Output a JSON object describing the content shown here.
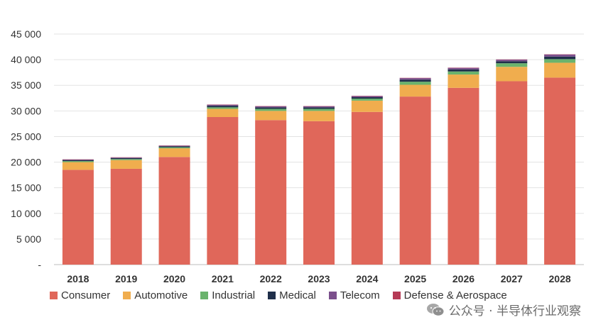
{
  "chart_data": {
    "type": "bar",
    "stacked": true,
    "categories": [
      "2018",
      "2019",
      "2020",
      "2021",
      "2022",
      "2023",
      "2024",
      "2025",
      "2026",
      "2027",
      "2028"
    ],
    "series": [
      {
        "name": "Consumer",
        "color": "#e0675a",
        "values": [
          18500,
          18700,
          21000,
          28800,
          28200,
          28000,
          29800,
          32800,
          34500,
          35800,
          36500
        ]
      },
      {
        "name": "Automotive",
        "color": "#f0ad4e",
        "values": [
          1500,
          1700,
          1700,
          1600,
          1800,
          2000,
          2200,
          2300,
          2600,
          2800,
          2900
        ]
      },
      {
        "name": "Industrial",
        "color": "#6ab36d",
        "values": [
          200,
          200,
          200,
          300,
          400,
          400,
          400,
          600,
          600,
          700,
          700
        ]
      },
      {
        "name": "Medical",
        "color": "#1f2f4a",
        "values": [
          200,
          200,
          200,
          300,
          300,
          300,
          300,
          400,
          400,
          400,
          500
        ]
      },
      {
        "name": "Telecom",
        "color": "#7b4f8c",
        "values": [
          100,
          100,
          100,
          200,
          200,
          200,
          200,
          300,
          300,
          300,
          400
        ]
      },
      {
        "name": "Defense & Aerospace",
        "color": "#b53a55",
        "values": [
          50,
          50,
          50,
          50,
          50,
          50,
          50,
          50,
          50,
          50,
          50
        ]
      }
    ],
    "ylim": [
      0,
      45000
    ],
    "yticks": [
      "-",
      "5 000",
      "10 000",
      "15 000",
      "20 000",
      "25 000",
      "30 000",
      "35 000",
      "40 000",
      "45 000"
    ],
    "ytick_values": [
      0,
      5000,
      10000,
      15000,
      20000,
      25000,
      30000,
      35000,
      40000,
      45000
    ],
    "grid": true,
    "legend_position": "bottom",
    "title": "",
    "xlabel": "",
    "ylabel": ""
  },
  "watermark": {
    "text": "公众号 · 半导体行业观察",
    "icon": "wechat-icon"
  }
}
